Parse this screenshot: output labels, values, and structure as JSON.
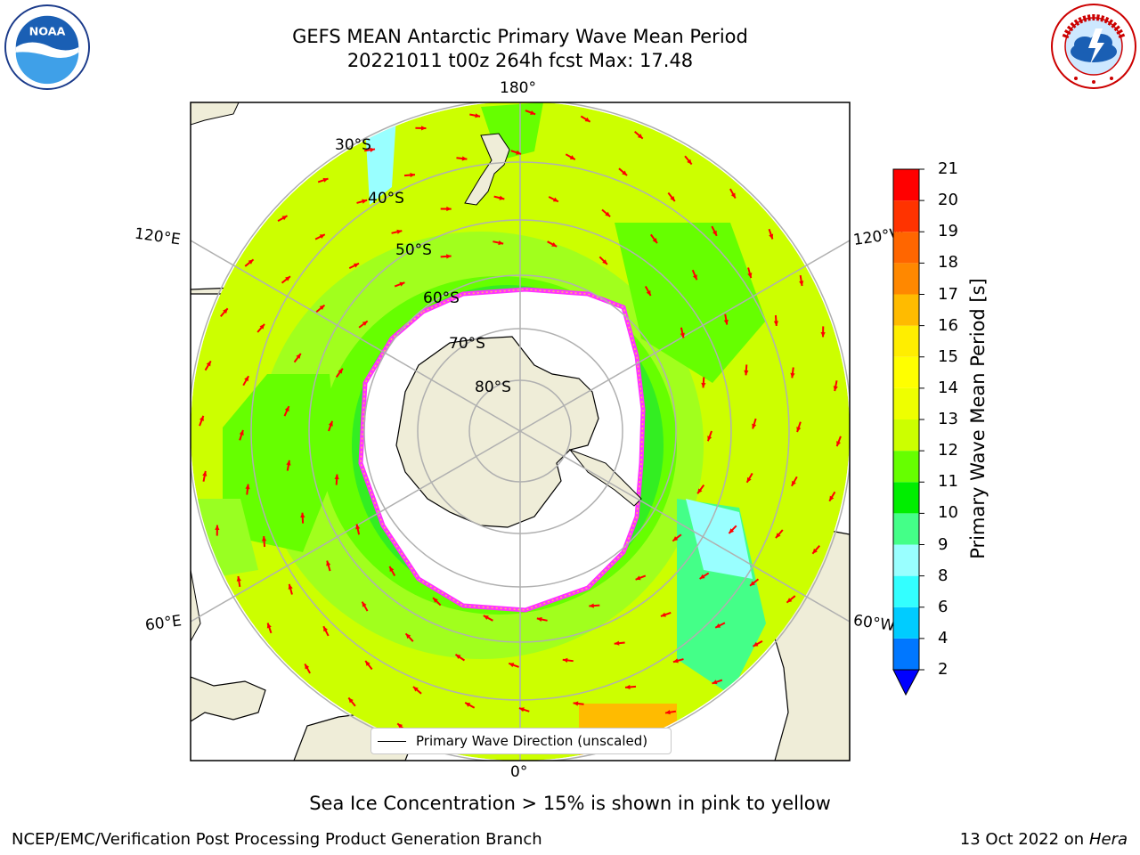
{
  "title": {
    "line1": "GEFS MEAN Antarctic Primary Wave Mean Period",
    "line2": "20221011 t00z 264h fcst   Max: 17.48"
  },
  "logos": {
    "left": {
      "name": "NOAA",
      "text": "NOAA",
      "ring_text": "NATIONAL OCEANIC AND ATMOSPHERIC ADMINISTRATION · U.S. DEPARTMENT OF COMMERCE"
    },
    "right": {
      "name": "National Weather Service",
      "ring_text": "NATIONAL WEATHER SERVICE"
    }
  },
  "map": {
    "projection": "south-polar-stereographic",
    "longitude_labels": {
      "top": "180°",
      "bottom": "0°",
      "upper_left": "120°E",
      "upper_right": "120°W",
      "lower_left": "60°E",
      "lower_right": "60°W"
    },
    "latitude_labels": [
      "30°S",
      "40°S",
      "50°S",
      "60°S",
      "70°S",
      "80°S"
    ],
    "legend": {
      "label": "Primary Wave Direction (unscaled)"
    },
    "sea_ice_note": "Sea Ice Concentration > 15% is shown in pink to yellow",
    "colors": {
      "land": "#efedd8",
      "ice_edge": "#ff33ff",
      "arrow": "#ff0000",
      "grid": "#b0b0b0"
    }
  },
  "colorbar": {
    "label": "Primary Wave Mean Period [s]",
    "ticks": [
      "2",
      "4",
      "6",
      "8",
      "9",
      "10",
      "11",
      "12",
      "13",
      "14",
      "15",
      "16",
      "17",
      "18",
      "19",
      "20",
      "21"
    ],
    "bins": [
      {
        "from": 2,
        "to": 4,
        "color": "#0077ff"
      },
      {
        "from": 4,
        "to": 6,
        "color": "#00ccff"
      },
      {
        "from": 6,
        "to": 8,
        "color": "#33ffff"
      },
      {
        "from": 8,
        "to": 9,
        "color": "#99ffff"
      },
      {
        "from": 9,
        "to": 10,
        "color": "#44ff88"
      },
      {
        "from": 10,
        "to": 11,
        "color": "#00ee00"
      },
      {
        "from": 11,
        "to": 12,
        "color": "#66ff00"
      },
      {
        "from": 12,
        "to": 13,
        "color": "#ccff00"
      },
      {
        "from": 13,
        "to": 14,
        "color": "#eeff00"
      },
      {
        "from": 14,
        "to": 15,
        "color": "#ffff00"
      },
      {
        "from": 15,
        "to": 16,
        "color": "#ffee00"
      },
      {
        "from": 16,
        "to": 17,
        "color": "#ffbb00"
      },
      {
        "from": 17,
        "to": 18,
        "color": "#ff8800"
      },
      {
        "from": 18,
        "to": 19,
        "color": "#ff6600"
      },
      {
        "from": 19,
        "to": 20,
        "color": "#ff3300"
      },
      {
        "from": 20,
        "to": 21,
        "color": "#ff0000"
      }
    ],
    "under_color": "#0000ff"
  },
  "footer": {
    "left": "NCEP/EMC/Verification Post Processing Product Generation Branch",
    "right_date": "13 Oct 2022 on",
    "right_host": "Hera"
  }
}
